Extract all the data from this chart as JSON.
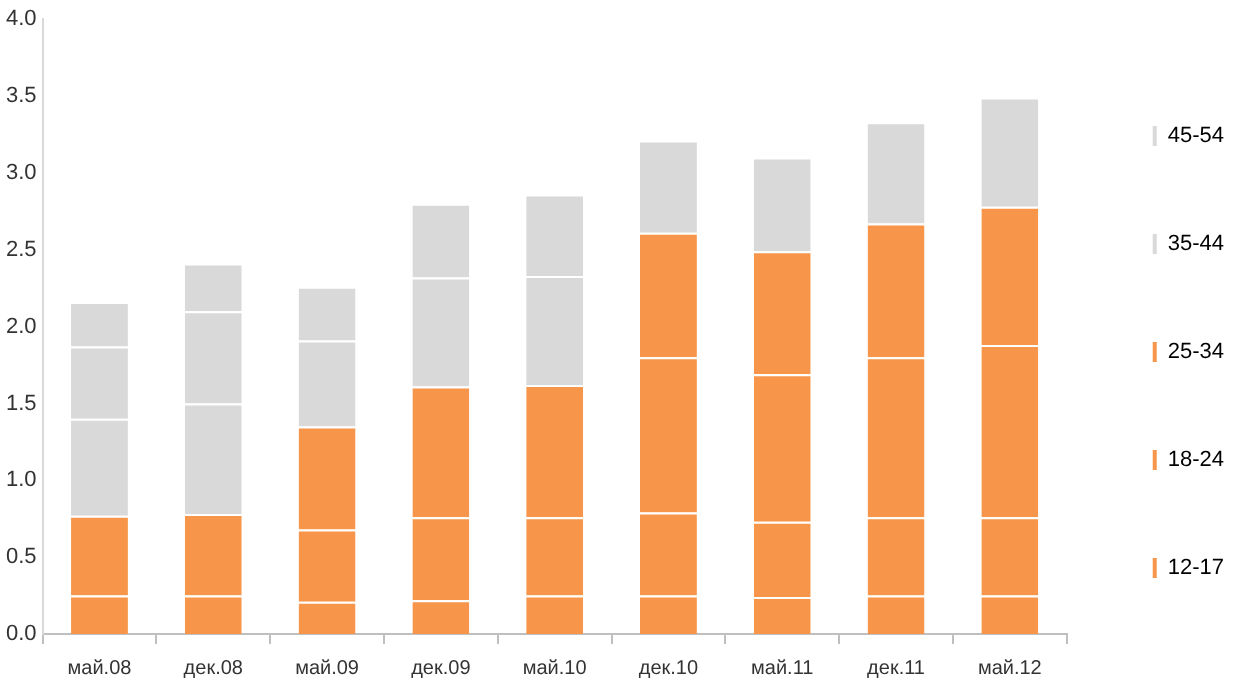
{
  "chart_data": {
    "type": "bar",
    "stacked": true,
    "legend": "right",
    "grid": false,
    "categories": [
      "май.08",
      "дек.08",
      "май.09",
      "дек.09",
      "май.10",
      "дек.10",
      "май.11",
      "дек.11",
      "май.12"
    ],
    "ylim": [
      0,
      4
    ],
    "yticks": [
      {
        "value": 0,
        "label": "0.0"
      },
      {
        "value": 0.5,
        "label": "0.5"
      },
      {
        "value": 1,
        "label": "1.0"
      },
      {
        "value": 1.5,
        "label": "1.5"
      },
      {
        "value": 2,
        "label": "2.0"
      },
      {
        "value": 2.5,
        "label": "2.5"
      },
      {
        "value": 3,
        "label": "3.0"
      },
      {
        "value": 3.5,
        "label": "3.5"
      },
      {
        "value": 4,
        "label": "4.0"
      }
    ],
    "series": [
      {
        "name": "12-17",
        "color": "#f7964a",
        "values": [
          0.25,
          0.25,
          0.21,
          0.22,
          0.25,
          0.25,
          0.24,
          0.25,
          0.25
        ],
        "colors": [
          "#f7964a",
          "#f7964a",
          "#f7964a",
          "#f7964a",
          "#f7964a",
          "#f7964a",
          "#f7964a",
          "#f7964a",
          "#f7964a"
        ]
      },
      {
        "name": "18-24",
        "color": "#f7964a",
        "values": [
          0.52,
          0.53,
          0.47,
          0.54,
          0.51,
          0.54,
          0.49,
          0.51,
          0.51
        ],
        "colors": [
          "#f7964a",
          "#f7964a",
          "#f7964a",
          "#f7964a",
          "#f7964a",
          "#f7964a",
          "#f7964a",
          "#f7964a",
          "#f7964a"
        ]
      },
      {
        "name": "25-34",
        "color": "#f7964a",
        "values": [
          0.63,
          0.72,
          0.67,
          0.85,
          0.86,
          1.01,
          0.96,
          1.04,
          1.12
        ],
        "colors": [
          "#d9d9d9",
          "#d9d9d9",
          "#f7964a",
          "#f7964a",
          "#f7964a",
          "#f7964a",
          "#f7964a",
          "#f7964a",
          "#f7964a"
        ]
      },
      {
        "name": "35-44",
        "color": "#d9d9d9",
        "values": [
          0.47,
          0.6,
          0.56,
          0.71,
          0.71,
          0.81,
          0.8,
          0.87,
          0.9
        ],
        "colors": [
          "#d9d9d9",
          "#d9d9d9",
          "#d9d9d9",
          "#d9d9d9",
          "#d9d9d9",
          "#f7964a",
          "#f7964a",
          "#f7964a",
          "#f7964a"
        ]
      },
      {
        "name": "45-54",
        "color": "#d9d9d9",
        "values": [
          0.29,
          0.31,
          0.35,
          0.48,
          0.53,
          0.6,
          0.61,
          0.66,
          0.71
        ],
        "colors": [
          "#d9d9d9",
          "#d9d9d9",
          "#d9d9d9",
          "#d9d9d9",
          "#d9d9d9",
          "#d9d9d9",
          "#d9d9d9",
          "#d9d9d9",
          "#d9d9d9"
        ]
      }
    ]
  }
}
